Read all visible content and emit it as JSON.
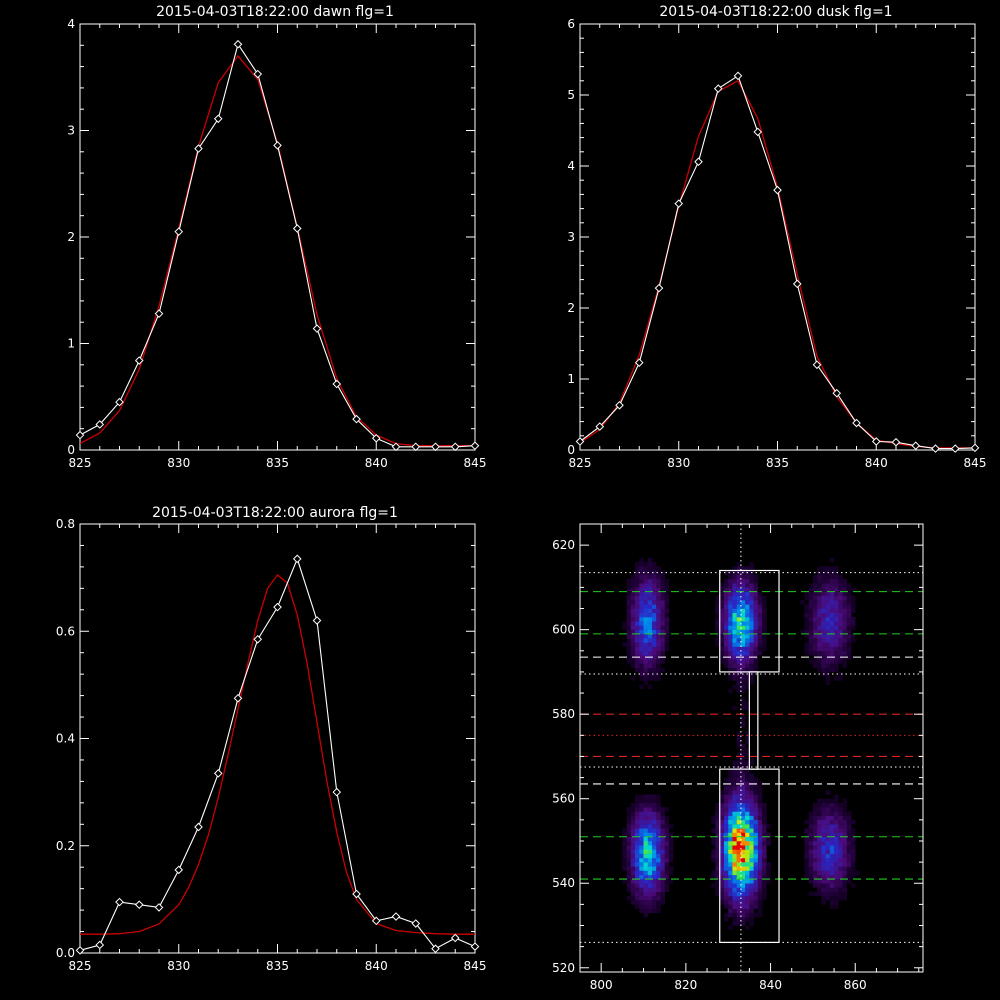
{
  "colors": {
    "background": "#000000",
    "axis": "#ffffff",
    "data_line": "#ffffff",
    "fit_line": "#cc0000",
    "green_dash": "#22cc22",
    "white_dash": "#ffffff",
    "red_dash": "#dd2222",
    "red_dot": "#dd2222"
  },
  "chart_data": [
    {
      "id": "dawn",
      "type": "line",
      "title": "2015-04-03T18:22:00 dawn flg=1",
      "xlim": [
        825,
        845
      ],
      "ylim": [
        0,
        4
      ],
      "xticks": [
        825,
        830,
        835,
        840,
        845
      ],
      "yticks": [
        0,
        1,
        2,
        3,
        4
      ],
      "series": [
        {
          "kind": "data",
          "x": [
            825,
            826,
            827,
            828,
            829,
            830,
            831,
            832,
            833,
            834,
            835,
            836,
            837,
            838,
            839,
            840,
            841,
            842,
            843,
            844,
            845
          ],
          "y": [
            0.14,
            0.24,
            0.45,
            0.84,
            1.28,
            2.05,
            2.83,
            3.11,
            3.81,
            3.53,
            2.86,
            2.08,
            1.14,
            0.62,
            0.29,
            0.11,
            0.03,
            0.03,
            0.03,
            0.03,
            0.04
          ]
        },
        {
          "kind": "fit",
          "x": [
            825,
            826,
            827,
            828,
            829,
            830,
            831,
            832,
            833,
            834,
            835,
            836,
            837,
            838,
            839,
            840,
            841,
            842,
            843,
            844,
            845
          ],
          "y": [
            0.06,
            0.16,
            0.37,
            0.76,
            1.35,
            2.08,
            2.85,
            3.45,
            3.7,
            3.48,
            2.88,
            2.09,
            1.27,
            0.67,
            0.31,
            0.14,
            0.06,
            0.04,
            0.04,
            0.04,
            0.04
          ]
        }
      ]
    },
    {
      "id": "dusk",
      "type": "line",
      "title": "2015-04-03T18:22:00 dusk flg=1",
      "xlim": [
        825,
        845
      ],
      "ylim": [
        0,
        6
      ],
      "xticks": [
        825,
        830,
        835,
        840,
        845
      ],
      "yticks": [
        0,
        1,
        2,
        3,
        4,
        5,
        6
      ],
      "series": [
        {
          "kind": "data",
          "x": [
            825,
            826,
            827,
            828,
            829,
            830,
            831,
            832,
            833,
            834,
            835,
            836,
            837,
            838,
            839,
            840,
            841,
            842,
            843,
            844,
            845
          ],
          "y": [
            0.12,
            0.33,
            0.63,
            1.23,
            2.28,
            3.47,
            4.06,
            5.09,
            5.27,
            4.48,
            3.66,
            2.34,
            1.2,
            0.8,
            0.38,
            0.12,
            0.11,
            0.06,
            0.02,
            0.02,
            0.03
          ]
        },
        {
          "kind": "fit",
          "x": [
            825,
            826,
            827,
            828,
            829,
            830,
            831,
            832,
            833,
            834,
            835,
            836,
            837,
            838,
            839,
            840,
            841,
            842,
            843,
            844,
            845
          ],
          "y": [
            0.1,
            0.29,
            0.66,
            1.34,
            2.31,
            3.44,
            4.42,
            5.05,
            5.2,
            4.67,
            3.7,
            2.47,
            1.32,
            0.75,
            0.38,
            0.14,
            0.09,
            0.05,
            0.03,
            0.03,
            0.03
          ]
        }
      ]
    },
    {
      "id": "aurora",
      "type": "line",
      "title": "2015-04-03T18:22:00 aurora flg=1",
      "xlim": [
        825,
        845
      ],
      "ylim": [
        0,
        0.8
      ],
      "xticks": [
        825,
        830,
        835,
        840,
        845
      ],
      "yticks": [
        0.0,
        0.2,
        0.4,
        0.6,
        0.8
      ],
      "ytick_labels": [
        "0.0",
        "0.2",
        "0.4",
        "0.6",
        "0.8"
      ],
      "series": [
        {
          "kind": "data",
          "x": [
            825,
            826,
            827,
            828,
            829,
            830,
            831,
            832,
            833,
            834,
            835,
            836,
            837,
            838,
            839,
            840,
            841,
            842,
            843,
            844,
            845
          ],
          "y": [
            0.005,
            0.015,
            0.095,
            0.09,
            0.085,
            0.155,
            0.235,
            0.335,
            0.475,
            0.585,
            0.645,
            0.735,
            0.62,
            0.3,
            0.11,
            0.06,
            0.068,
            0.055,
            0.008,
            0.028,
            0.012
          ]
        },
        {
          "kind": "fit",
          "x": [
            825,
            826,
            827,
            828,
            829,
            830,
            830.5,
            831,
            831.5,
            832,
            832.5,
            833,
            833.5,
            834,
            834.5,
            835,
            835.5,
            836,
            836.5,
            837,
            837.5,
            838,
            838.5,
            839,
            840,
            841,
            842,
            843,
            844,
            845
          ],
          "y": [
            0.035,
            0.035,
            0.036,
            0.04,
            0.054,
            0.09,
            0.122,
            0.165,
            0.22,
            0.29,
            0.37,
            0.455,
            0.54,
            0.62,
            0.68,
            0.705,
            0.69,
            0.63,
            0.54,
            0.43,
            0.32,
            0.225,
            0.15,
            0.1,
            0.055,
            0.042,
            0.038,
            0.036,
            0.035,
            0.035
          ]
        }
      ]
    },
    {
      "id": "image",
      "type": "heatmap",
      "xlim": [
        795,
        876
      ],
      "ylim": [
        519,
        625
      ],
      "xticks": [
        800,
        820,
        840,
        860
      ],
      "yticks": [
        520,
        540,
        560,
        580,
        600,
        620
      ],
      "blobs": [
        {
          "x": 833,
          "y": 602,
          "sx": 2.6,
          "sy": 6,
          "amp": 0.62
        },
        {
          "x": 833,
          "y": 548,
          "sx": 2.8,
          "sy": 7.5,
          "amp": 0.95
        },
        {
          "x": 811,
          "y": 602,
          "sx": 2.6,
          "sy": 7,
          "amp": 0.42
        },
        {
          "x": 811,
          "y": 547,
          "sx": 2.6,
          "sy": 6.5,
          "amp": 0.58
        },
        {
          "x": 854,
          "y": 602,
          "sx": 3.2,
          "sy": 7,
          "amp": 0.28
        },
        {
          "x": 854,
          "y": 548,
          "sx": 3.2,
          "sy": 6.5,
          "amp": 0.33
        },
        {
          "x": 833,
          "y": 575,
          "sx": 2.0,
          "sy": 15,
          "amp": 0.05
        }
      ],
      "boxes": [
        {
          "x0": 828,
          "x1": 842,
          "y0": 590,
          "y1": 614
        },
        {
          "x0": 828,
          "x1": 842,
          "y0": 526,
          "y1": 567
        },
        {
          "x0": 835,
          "x1": 837,
          "y0": 567,
          "y1": 590
        }
      ],
      "vline_x": 833,
      "hlines": [
        {
          "y": 609,
          "style": "green_dash"
        },
        {
          "y": 599,
          "style": "green_dash"
        },
        {
          "y": 551,
          "style": "green_dash"
        },
        {
          "y": 541,
          "style": "green_dash"
        },
        {
          "y": 593.5,
          "style": "white_dash"
        },
        {
          "y": 563.5,
          "style": "white_dash"
        },
        {
          "y": 580,
          "style": "red_dash"
        },
        {
          "y": 570,
          "style": "red_dash"
        },
        {
          "y": 575,
          "style": "red_dot"
        },
        {
          "y": 613.5,
          "style": "white_dot"
        },
        {
          "y": 589.5,
          "style": "white_dot"
        },
        {
          "y": 567.5,
          "style": "white_dot"
        },
        {
          "y": 526,
          "style": "white_dot"
        }
      ]
    }
  ]
}
